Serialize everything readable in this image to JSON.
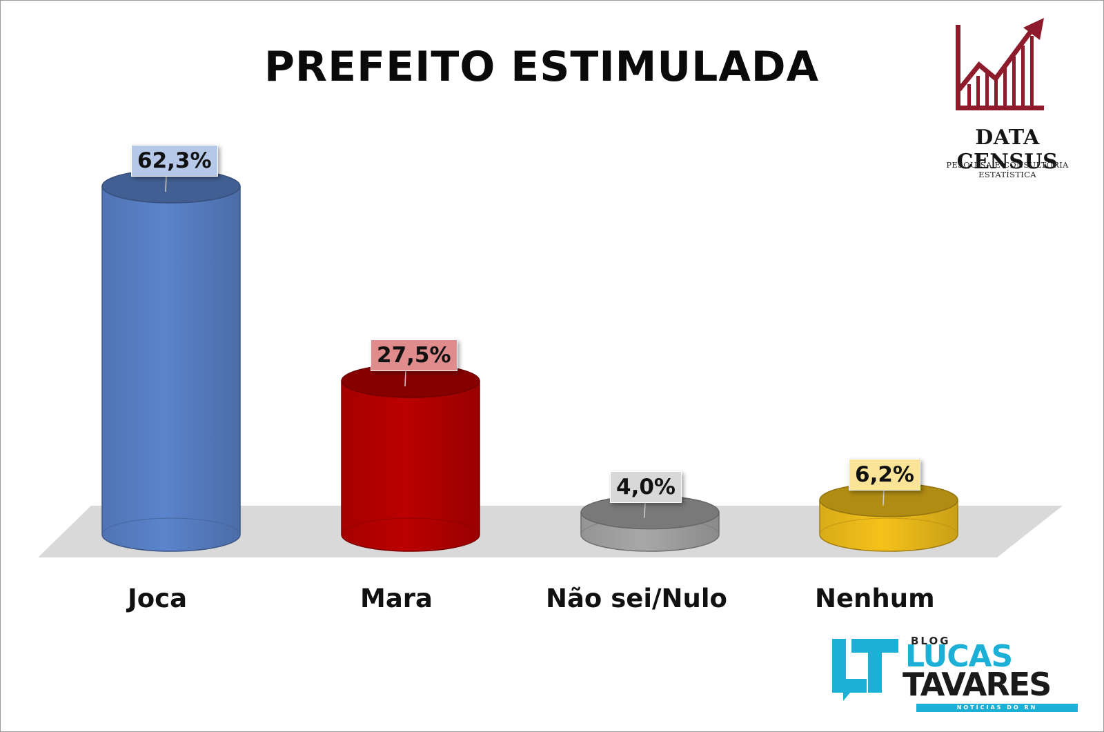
{
  "chart_data": {
    "type": "bar",
    "title": "PREFEITO ESTIMULADA",
    "categories": [
      "Joca",
      "Mara",
      "Não sei/Nulo",
      "Nenhum"
    ],
    "values": [
      62.3,
      27.5,
      4.0,
      6.2
    ],
    "value_labels": [
      "62,3%",
      "27,5%",
      "4,0%",
      "6,2%"
    ],
    "colors": [
      "#5b84cc",
      "#bb0000",
      "#a8a8a8",
      "#f5c21b"
    ],
    "ylim": [
      0,
      62.3
    ],
    "grid": false,
    "legend": "none"
  },
  "logos": {
    "data_census": {
      "name": "DATA CENSUS",
      "tagline": "PESQUISA E CONSULTORIA ESTATÍSTICA"
    },
    "blog": {
      "blog": "BLOG",
      "name_top": "LUCAS",
      "name_bottom": "TAVARES",
      "subtitle": "NOTÍCIAS DO RN"
    }
  }
}
